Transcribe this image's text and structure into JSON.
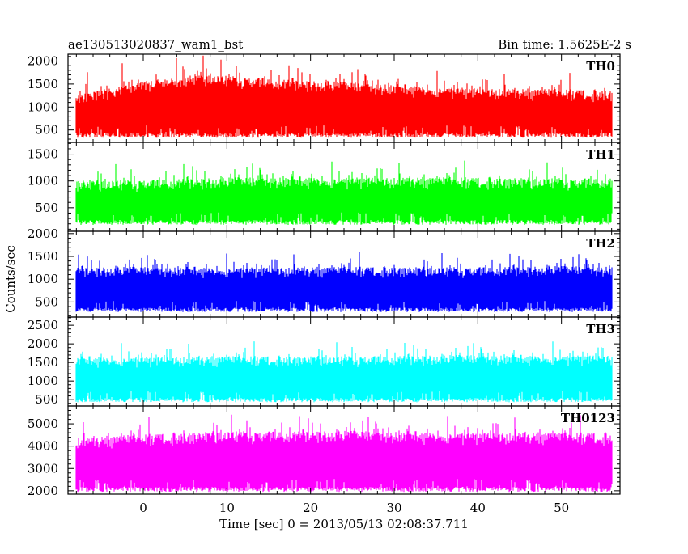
{
  "chart_data": {
    "type": "line",
    "title": "ae130513020837_wam1_bst",
    "subtitle": "Bin time: 1.5625E-2 s",
    "xlabel": "Time [sec] 0 = 2013/05/13 02:08:37.711",
    "ylabel": "Counts/sec",
    "xlim": [
      -9,
      57
    ],
    "x_ticks": [
      0,
      10,
      20,
      30,
      40,
      50
    ],
    "x_range_data": [
      -8,
      56
    ],
    "grid": false,
    "legend": "none",
    "panels": [
      {
        "name": "TH0",
        "color": "#ff0000",
        "ylim": [
          230,
          2150
        ],
        "yticks": [
          500,
          1000,
          1500,
          2000
        ],
        "mean": 1100,
        "spread": 300,
        "lower_bound": 330,
        "trend": [
          [
            -8,
            900
          ],
          [
            0,
            1200
          ],
          [
            8,
            1350
          ],
          [
            20,
            1200
          ],
          [
            40,
            1050
          ],
          [
            56,
            1000
          ]
        ]
      },
      {
        "name": "TH1",
        "color": "#00ff00",
        "ylim": [
          60,
          1720
        ],
        "yticks": [
          500,
          1000,
          1500
        ],
        "mean": 750,
        "spread": 260,
        "lower_bound": 180,
        "trend": [
          [
            -8,
            700
          ],
          [
            20,
            760
          ],
          [
            56,
            740
          ]
        ]
      },
      {
        "name": "TH2",
        "color": "#0000ff",
        "ylim": [
          170,
          2050
        ],
        "yticks": [
          500,
          1000,
          1500,
          2000
        ],
        "mean": 950,
        "spread": 270,
        "lower_bound": 280,
        "trend": [
          [
            -8,
            930
          ],
          [
            56,
            950
          ]
        ]
      },
      {
        "name": "TH3",
        "color": "#00ffff",
        "ylim": [
          330,
          2720
        ],
        "yticks": [
          500,
          1000,
          1500,
          2000,
          2500
        ],
        "mean": 1300,
        "spread": 330,
        "lower_bound": 430,
        "trend": [
          [
            -8,
            1250
          ],
          [
            56,
            1300
          ]
        ]
      },
      {
        "name": "TH0123",
        "color": "#ff00ff",
        "ylim": [
          1850,
          5800
        ],
        "yticks": [
          2000,
          3000,
          4000,
          5000
        ],
        "mean": 3800,
        "spread": 650,
        "lower_bound": 1950,
        "trend": [
          [
            -8,
            3600
          ],
          [
            10,
            3900
          ],
          [
            56,
            3800
          ]
        ]
      }
    ]
  }
}
